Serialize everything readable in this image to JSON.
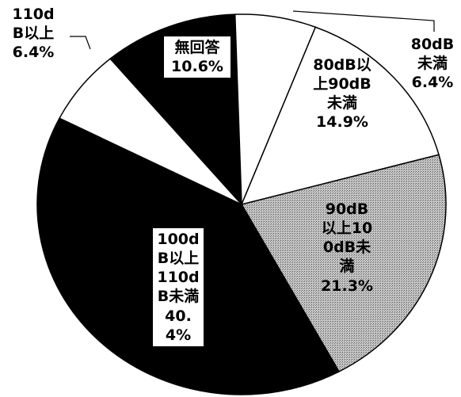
{
  "chart_data": {
    "type": "pie",
    "categories": [
      "無回答",
      "80dB未満",
      "80dB以上90dB未満",
      "90dB以上100dB未満",
      "100dB以上110dB未満",
      "110dB以上"
    ],
    "values": [
      10.6,
      6.4,
      14.9,
      21.3,
      40.4,
      6.4
    ],
    "value_labels": [
      "10.6%",
      "6.4%",
      "14.9%",
      "21.3%",
      "40.4%",
      "6.4%"
    ],
    "colors": [
      "#000000",
      "#ffffff",
      "#ffffff",
      "#b4b4b4",
      "#000000",
      "#ffffff"
    ]
  }
}
